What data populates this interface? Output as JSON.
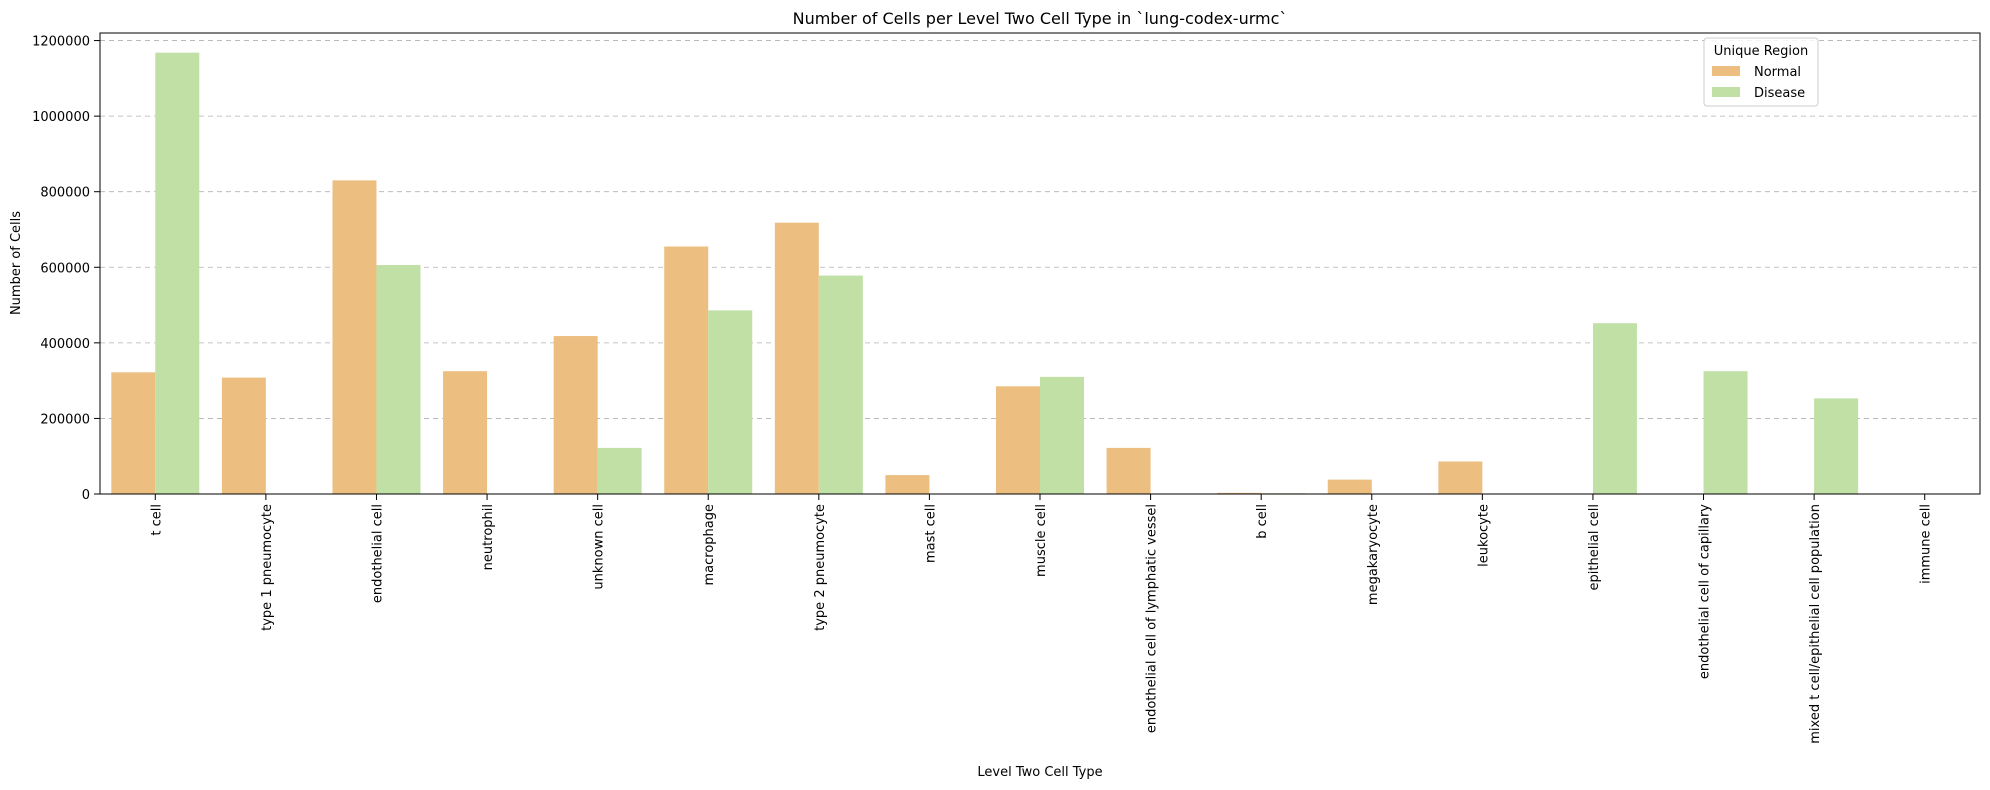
{
  "chart_data": {
    "type": "bar",
    "title": "Number of Cells per Level Two Cell Type in `lung-codex-urmc`",
    "xlabel": "Level Two Cell Type",
    "ylabel": "Number of Cells",
    "ylim": [
      0,
      1220000
    ],
    "yticks": [
      0,
      200000,
      400000,
      600000,
      800000,
      1000000,
      1200000
    ],
    "ytick_labels": [
      "0",
      "200000",
      "400000",
      "600000",
      "800000",
      "1000000",
      "1200000"
    ],
    "grid": "horizontal dashed",
    "legend": {
      "title": "Unique Region",
      "placement": "top-right"
    },
    "categories": [
      "t cell",
      "type 1 pneumocyte",
      "endothelial cell",
      "neutrophil",
      "unknown cell",
      "macrophage",
      "type 2 pneumocyte",
      "mast cell",
      "muscle cell",
      "endothelial cell of lymphatic vessel",
      "b cell",
      "megakaryocyte",
      "leukocyte",
      "epithelial cell",
      "endothelial cell of capillary",
      "mixed t cell/epithelial cell population",
      "immune cell"
    ],
    "series": [
      {
        "name": "Normal",
        "color": "#ecbe80",
        "values": [
          322000,
          308000,
          830000,
          325000,
          418000,
          655000,
          718000,
          50000,
          285000,
          122000,
          3000,
          38000,
          86000,
          0,
          0,
          0,
          0
        ]
      },
      {
        "name": "Disease",
        "color": "#c0e0a6",
        "values": [
          1168000,
          0,
          606000,
          0,
          122000,
          486000,
          578000,
          0,
          310000,
          0,
          2000,
          0,
          0,
          452000,
          325000,
          253000,
          0
        ]
      }
    ]
  }
}
